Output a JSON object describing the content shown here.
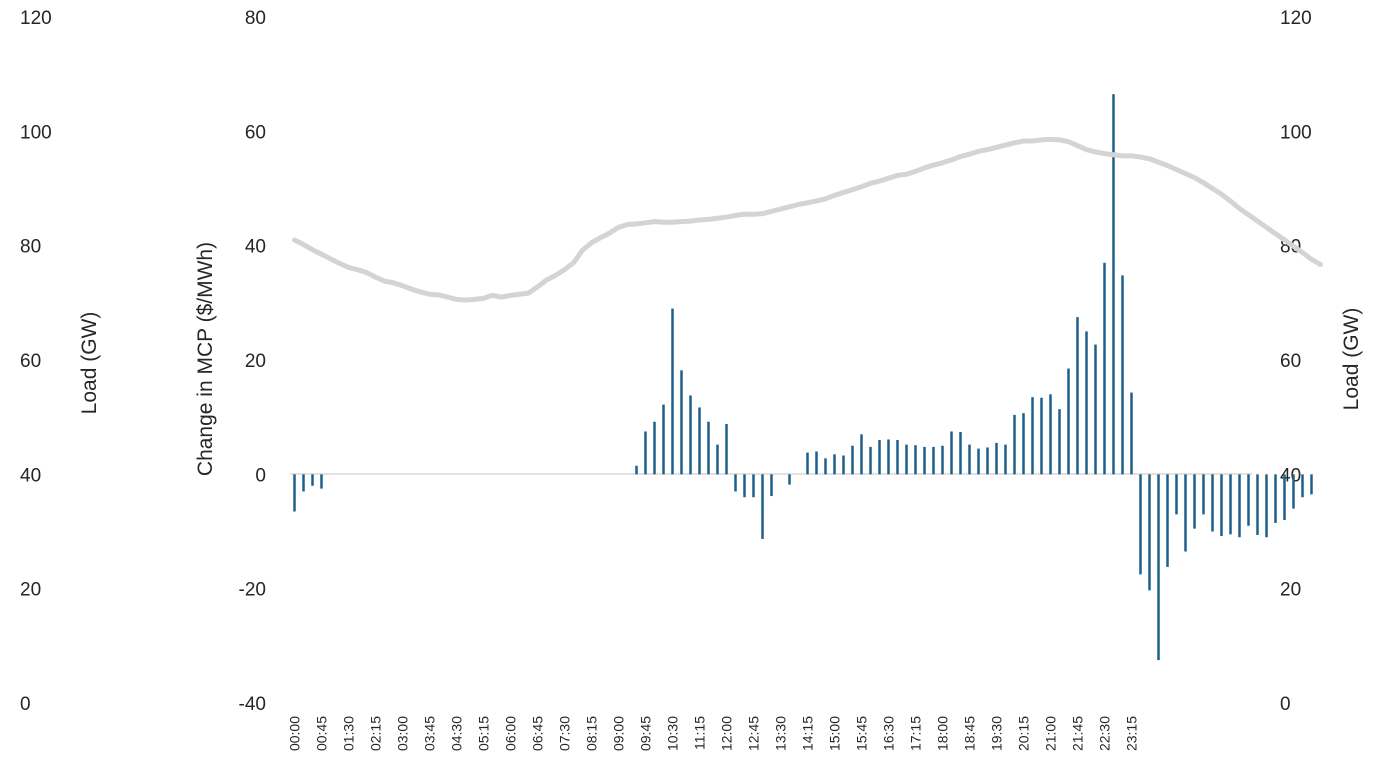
{
  "chart_data": {
    "type": "bar",
    "title": "",
    "bar_color": "#1f5f8b",
    "line_color": "#d4d4d4",
    "zero_line_color": "#d9d9d9",
    "x_tick_labels": [
      "00:00",
      "00:45",
      "01:30",
      "02:15",
      "03:00",
      "03:45",
      "04:30",
      "05:15",
      "06:00",
      "06:45",
      "07:30",
      "08:15",
      "09:00",
      "09:45",
      "10:30",
      "11:15",
      "12:00",
      "12:45",
      "13:30",
      "14:15",
      "15:00",
      "15:45",
      "16:30",
      "17:15",
      "18:00",
      "18:45",
      "19:30",
      "20:15",
      "21:00",
      "21:45",
      "22:30",
      "23:15"
    ],
    "axes": {
      "primary_y": {
        "label": "Change in MCP ($/MWh)",
        "min": -40,
        "max": 80,
        "ticks": [
          "80",
          "60",
          "40",
          "20",
          "0",
          "-20",
          "-40"
        ]
      },
      "load_left": {
        "label": "Load (GW)",
        "min": 0,
        "max": 120,
        "ticks": [
          "120",
          "100",
          "80",
          "60",
          "40",
          "20",
          "0"
        ]
      },
      "load_right": {
        "label": "Load (GW)",
        "min": 0,
        "max": 120,
        "ticks": [
          "120",
          "100",
          "80",
          "60",
          "40",
          "20",
          "0"
        ]
      }
    },
    "series": [
      {
        "type": "bar",
        "axis": "primary_y",
        "interval_minutes": 15,
        "values": [
          -6.5,
          -3,
          -2,
          -2.5,
          0,
          0,
          0,
          0,
          0,
          0,
          0,
          0,
          0,
          0,
          0,
          0,
          0,
          0,
          0,
          0,
          0,
          0,
          0,
          0,
          0,
          0,
          0,
          0,
          0,
          0,
          0,
          0,
          0,
          0,
          0,
          0,
          0,
          0,
          1.5,
          7.5,
          9.2,
          12.2,
          29,
          18.2,
          13.8,
          11.7,
          9.2,
          5.2,
          8.8,
          -3,
          -4,
          -4,
          -11.3,
          -3.8,
          0,
          -1.8,
          0,
          3.8,
          4,
          2.8,
          3.5,
          3.3,
          5,
          7,
          4.8,
          6,
          6.1,
          6,
          5.2,
          5.1,
          4.8,
          4.8,
          5,
          7.5,
          7.4,
          5.2,
          4.5,
          4.7,
          5.5,
          5.2,
          10.4,
          10.7,
          13.5,
          13.4,
          14,
          11.4,
          18.5,
          27.5,
          25,
          22.7,
          37,
          66.5,
          34.8,
          14.3,
          -17.5,
          -20.3,
          -32.5,
          -16.2,
          -7,
          -13.5,
          -9.5,
          -7,
          -10,
          -10.8,
          -10.5,
          -11,
          -9,
          -10.6,
          -11,
          -8.5,
          -8,
          -6,
          -4,
          -3.5
        ]
      },
      {
        "type": "line",
        "axis": "load_right",
        "interval_minutes": 15,
        "values": [
          81,
          80.2,
          79.3,
          78.5,
          77.7,
          76.9,
          76.2,
          75.8,
          75.3,
          74.5,
          73.8,
          73.5,
          73,
          72.4,
          71.9,
          71.5,
          71.4,
          71,
          70.6,
          70.5,
          70.6,
          70.8,
          71.3,
          71,
          71.3,
          71.5,
          71.7,
          72.8,
          74,
          74.8,
          75.8,
          77,
          79.2,
          80.5,
          81.4,
          82.2,
          83.2,
          83.7,
          83.8,
          84,
          84.2,
          84.1,
          84.1,
          84.2,
          84.3,
          84.5,
          84.6,
          84.8,
          85,
          85.3,
          85.5,
          85.5,
          85.6,
          86,
          86.4,
          86.8,
          87.2,
          87.5,
          87.8,
          88.2,
          88.8,
          89.3,
          89.8,
          90.3,
          90.9,
          91.3,
          91.8,
          92.3,
          92.5,
          93,
          93.6,
          94.1,
          94.5,
          95,
          95.6,
          96,
          96.5,
          96.8,
          97.2,
          97.6,
          98,
          98.3,
          98.3,
          98.5,
          98.6,
          98.5,
          98.2,
          97.5,
          96.8,
          96.4,
          96.1,
          95.9,
          95.7,
          95.7,
          95.5,
          95.2,
          94.6,
          94,
          93.3,
          92.6,
          91.9,
          91,
          90,
          89,
          87.8,
          86.5,
          85.4,
          84.3,
          83.2,
          82.1,
          81,
          79.9,
          78.8,
          77.6,
          76.7
        ]
      }
    ]
  }
}
